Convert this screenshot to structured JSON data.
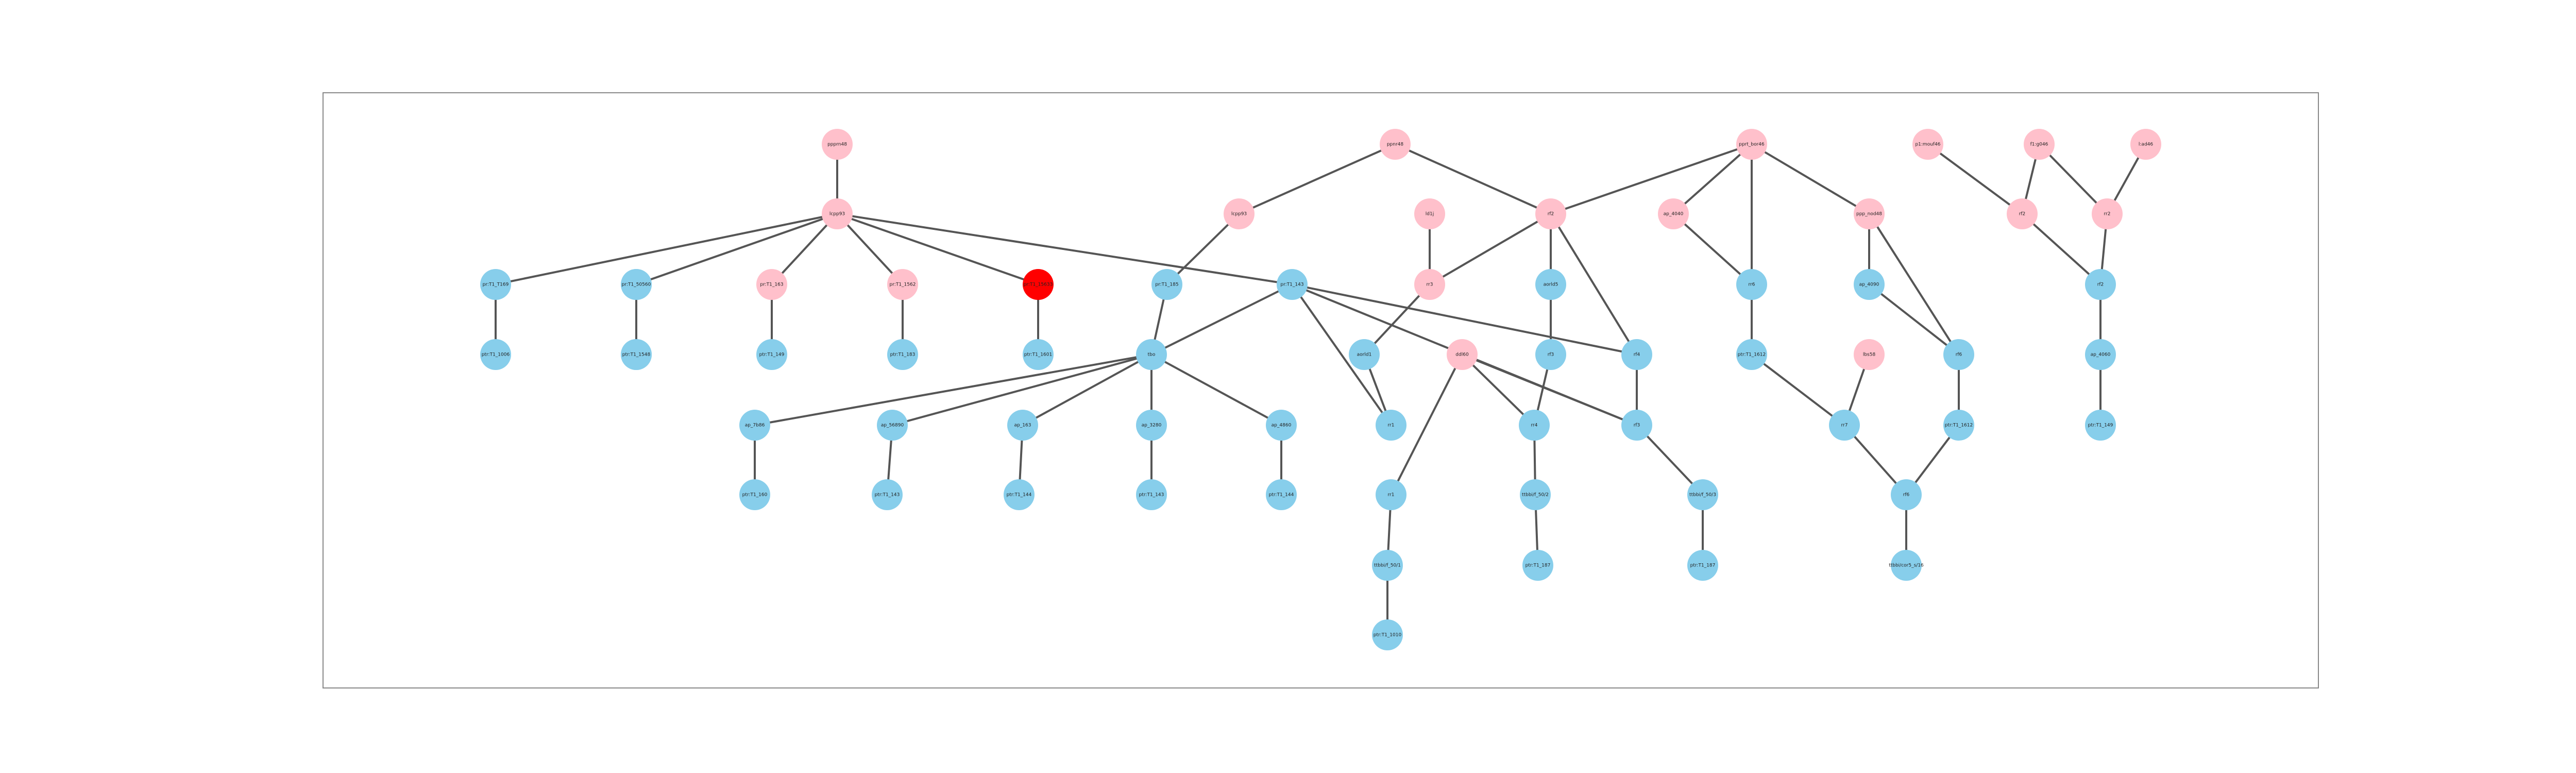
{
  "colors": {
    "blue": "#87CEEB",
    "pink": "#FFC0CB",
    "red": "#FF0000",
    "edge": "#555555"
  },
  "nodes": [
    {
      "id": "n1",
      "label": "ppprn48",
      "color": "pink"
    },
    {
      "id": "n2",
      "label": "lcpp93",
      "color": "pink"
    },
    {
      "id": "n3",
      "label": "pr:T1_T169",
      "color": "blue"
    },
    {
      "id": "n4",
      "label": "ptr:T1_1006",
      "color": "blue"
    },
    {
      "id": "n5",
      "label": "pr:T1_T18",
      "color": "blue"
    },
    {
      "id": "n6",
      "label": "pr:T1_1668",
      "color": "blue"
    },
    {
      "id": "n7",
      "label": "pr:T1_50560",
      "color": "blue"
    },
    {
      "id": "n8",
      "label": "ptr:T1_1548",
      "color": "blue"
    },
    {
      "id": "n9",
      "label": "pr:T1_163",
      "color": "pink"
    },
    {
      "id": "n10",
      "label": "ptr:T1_149",
      "color": "blue"
    },
    {
      "id": "n11",
      "label": "pr:T1_1562",
      "color": "pink"
    },
    {
      "id": "n12",
      "label": "ptr:T1_183",
      "color": "blue"
    },
    {
      "id": "n13",
      "label": "pr:T1_15633",
      "color": "red"
    },
    {
      "id": "n14",
      "label": "ptr:T1_1601",
      "color": "blue"
    },
    {
      "id": "n15",
      "label": "ppnr48",
      "color": "pink"
    },
    {
      "id": "n16",
      "label": "lcpp93",
      "color": "pink"
    },
    {
      "id": "n17",
      "label": "pr:T1_185",
      "color": "blue"
    },
    {
      "id": "n18",
      "label": "pr:T1_143",
      "color": "blue"
    },
    {
      "id": "n19",
      "label": "tbo",
      "color": "blue"
    },
    {
      "id": "n20",
      "label": "ap_7b86",
      "color": "blue"
    },
    {
      "id": "n21",
      "label": "ptr:T1_160",
      "color": "blue"
    },
    {
      "id": "n22",
      "label": "ap_56890",
      "color": "blue"
    },
    {
      "id": "n23",
      "label": "ptr:T1_143",
      "color": "blue"
    },
    {
      "id": "n24",
      "label": "ap_163",
      "color": "blue"
    },
    {
      "id": "n25",
      "label": "ptr:T1_144",
      "color": "blue"
    },
    {
      "id": "n26",
      "label": "ap_3280",
      "color": "blue"
    },
    {
      "id": "n27",
      "label": "ptr:T1_143",
      "color": "blue"
    },
    {
      "id": "n28",
      "label": "ap_4860",
      "color": "blue"
    },
    {
      "id": "n29",
      "label": "ptr:T1_144",
      "color": "blue"
    },
    {
      "id": "n30",
      "label": "ld1j",
      "color": "pink"
    },
    {
      "id": "n31",
      "label": "rr3",
      "color": "pink"
    },
    {
      "id": "n32",
      "label": "aorld1",
      "color": "blue"
    },
    {
      "id": "n33",
      "label": "rr1",
      "color": "blue"
    },
    {
      "id": "n34",
      "label": "rr1",
      "color": "blue"
    },
    {
      "id": "n35",
      "label": "ttbbi/f_50/1",
      "color": "blue"
    },
    {
      "id": "n36",
      "label": "ptr:T1_1010",
      "color": "blue"
    },
    {
      "id": "n37",
      "label": "rf2",
      "color": "pink"
    },
    {
      "id": "n38",
      "label": "aorld5",
      "color": "blue"
    },
    {
      "id": "n39",
      "label": "rf3",
      "color": "blue"
    },
    {
      "id": "n40",
      "label": "ddl60",
      "color": "pink"
    },
    {
      "id": "n41",
      "label": "rr4",
      "color": "blue"
    },
    {
      "id": "n42",
      "label": "ttbbi/f_50/2",
      "color": "blue"
    },
    {
      "id": "n43",
      "label": "ptr:T1_187",
      "color": "blue"
    },
    {
      "id": "n44",
      "label": "rf4",
      "color": "blue"
    },
    {
      "id": "n45",
      "label": "rf3",
      "color": "blue"
    },
    {
      "id": "n46",
      "label": "ttbbi/f_50/3",
      "color": "blue"
    },
    {
      "id": "n47",
      "label": "ptr:T1_187",
      "color": "blue"
    },
    {
      "id": "n48",
      "label": "pprt_bor46",
      "color": "pink"
    },
    {
      "id": "n49",
      "label": "ap_4040",
      "color": "pink"
    },
    {
      "id": "n50",
      "label": "rr6",
      "color": "blue"
    },
    {
      "id": "n51",
      "label": "ptr:T1_1612",
      "color": "blue"
    },
    {
      "id": "n52",
      "label": "ppp_nod48",
      "color": "pink"
    },
    {
      "id": "n53",
      "label": "ap_4090",
      "color": "blue"
    },
    {
      "id": "n54",
      "label": "rf6",
      "color": "blue"
    },
    {
      "id": "n55",
      "label": "ptr:T1_1612",
      "color": "blue"
    },
    {
      "id": "n56",
      "label": "lbs58",
      "color": "pink"
    },
    {
      "id": "n57",
      "label": "rr7",
      "color": "blue"
    },
    {
      "id": "n58",
      "label": "rf6",
      "color": "blue"
    },
    {
      "id": "n59",
      "label": "ttbbi/cor5_s/16",
      "color": "blue"
    },
    {
      "id": "n60",
      "label": "p1:mouf46",
      "color": "pink"
    },
    {
      "id": "n61",
      "label": "f1:g046",
      "color": "pink"
    },
    {
      "id": "n62",
      "label": "l:ad46",
      "color": "pink"
    },
    {
      "id": "n63",
      "label": "rf2",
      "color": "pink"
    },
    {
      "id": "n64",
      "label": "rr2",
      "color": "pink"
    },
    {
      "id": "n65",
      "label": "rf2",
      "color": "blue"
    },
    {
      "id": "n66",
      "label": "ap_4060",
      "color": "blue"
    },
    {
      "id": "n67",
      "label": "ptr:T1_149",
      "color": "blue"
    }
  ],
  "edges": [
    [
      "n1",
      "n2"
    ],
    [
      "n2",
      "n3"
    ],
    [
      "n2",
      "n5"
    ],
    [
      "n2",
      "n9"
    ],
    [
      "n2",
      "n11"
    ],
    [
      "n2",
      "n13"
    ],
    [
      "n2",
      "n18"
    ],
    [
      "n3",
      "n4"
    ],
    [
      "n5",
      "n6"
    ],
    [
      "n9",
      "n10"
    ],
    [
      "n11",
      "n12"
    ],
    [
      "n13",
      "n14"
    ],
    [
      "n15",
      "n16"
    ],
    [
      "n15",
      "n37"
    ],
    [
      "n16",
      "n17"
    ],
    [
      "n17",
      "n19"
    ],
    [
      "n18",
      "n19"
    ],
    [
      "n18",
      "n33"
    ],
    [
      "n18",
      "n44"
    ],
    [
      "n18",
      "n45"
    ],
    [
      "n19",
      "n20"
    ],
    [
      "n19",
      "n22"
    ],
    [
      "n19",
      "n24"
    ],
    [
      "n19",
      "n26"
    ],
    [
      "n19",
      "n28"
    ],
    [
      "n20",
      "n21"
    ],
    [
      "n22",
      "n23"
    ],
    [
      "n24",
      "n25"
    ],
    [
      "n26",
      "n27"
    ],
    [
      "n28",
      "n29"
    ],
    [
      "n30",
      "n31"
    ],
    [
      "n31",
      "n32"
    ],
    [
      "n31",
      "n37"
    ],
    [
      "n32",
      "n33"
    ],
    [
      "n34",
      "n35"
    ],
    [
      "n35",
      "n36"
    ],
    [
      "n37",
      "n38"
    ],
    [
      "n37",
      "n44"
    ],
    [
      "n38",
      "n39"
    ],
    [
      "n39",
      "n41"
    ],
    [
      "n40",
      "n34"
    ],
    [
      "n40",
      "n41"
    ],
    [
      "n40",
      "n45"
    ],
    [
      "n41",
      "n42"
    ],
    [
      "n42",
      "n43"
    ],
    [
      "n44",
      "n45"
    ],
    [
      "n45",
      "n46"
    ],
    [
      "n46",
      "n47"
    ],
    [
      "n48",
      "n37"
    ],
    [
      "n48",
      "n49"
    ],
    [
      "n48",
      "n50"
    ],
    [
      "n48",
      "n52"
    ],
    [
      "n49",
      "n50"
    ],
    [
      "n50",
      "n51"
    ],
    [
      "n51",
      "n57"
    ],
    [
      "n52",
      "n53"
    ],
    [
      "n52",
      "n54"
    ],
    [
      "n53",
      "n54"
    ],
    [
      "n54",
      "n55"
    ],
    [
      "n55",
      "n58"
    ],
    [
      "n56",
      "n57"
    ],
    [
      "n57",
      "n58"
    ],
    [
      "n58",
      "n59"
    ],
    [
      "n60",
      "n63"
    ],
    [
      "n61",
      "n63"
    ],
    [
      "n61",
      "n64"
    ],
    [
      "n62",
      "n64"
    ],
    [
      "n63",
      "n65"
    ],
    [
      "n64",
      "n65"
    ],
    [
      "n65",
      "n66"
    ],
    [
      "n66",
      "n67"
    ]
  ]
}
